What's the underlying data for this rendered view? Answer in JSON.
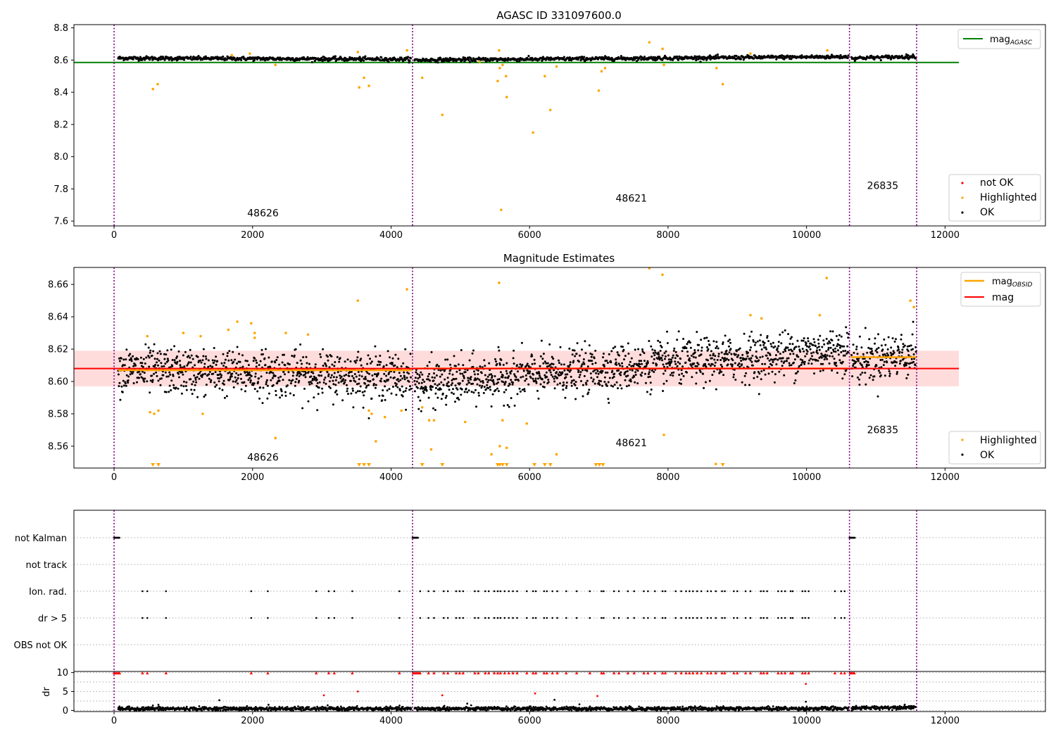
{
  "figure": {
    "title": "AGASC ID 331097600.0",
    "colors": {
      "ok": "#000000",
      "highlighted": "#ffa500",
      "not_ok": "#ff0000",
      "agasc_line": "#008000",
      "obsid_mag": "#ffa500",
      "mag": "#ff0000",
      "band": "#ffc0c0",
      "obs_boundary": "#800080"
    }
  },
  "chart_data": [
    {
      "id": "agasc",
      "type": "scatter",
      "title": "AGASC ID 331097600.0",
      "xlim": [
        -580,
        13450
      ],
      "ylim": [
        7.57,
        8.82
      ],
      "x_ticks": [
        "0",
        "2000",
        "4000",
        "6000",
        "8000",
        "10000",
        "12000"
      ],
      "y_ticks": [
        "7.6",
        "7.8",
        "8.0",
        "8.2",
        "8.4",
        "8.6",
        "8.8"
      ],
      "obs_boundaries": [
        0,
        4310,
        10620,
        11590
      ],
      "obs_labels": [
        {
          "text": "48626",
          "x": 2150,
          "y": 7.63
        },
        {
          "text": "48621",
          "x": 7470,
          "y": 7.72
        },
        {
          "text": "26835",
          "x": 11100,
          "y": 7.8
        }
      ],
      "mag_agasc": 8.585,
      "series": [
        {
          "name": "not OK",
          "color": "#ff0000",
          "points": []
        },
        {
          "name": "Highlighted",
          "color": "#ffa500",
          "points": [
            [
              560,
              8.42
            ],
            [
              630,
              8.45
            ],
            [
              1700,
              8.63
            ],
            [
              1960,
              8.64
            ],
            [
              2330,
              8.57
            ],
            [
              3520,
              8.65
            ],
            [
              3540,
              8.43
            ],
            [
              3610,
              8.49
            ],
            [
              3680,
              8.44
            ],
            [
              4230,
              8.66
            ],
            [
              4450,
              8.49
            ],
            [
              4740,
              8.26
            ],
            [
              5280,
              8.59
            ],
            [
              5540,
              8.47
            ],
            [
              5560,
              8.66
            ],
            [
              5570,
              8.55
            ],
            [
              5610,
              8.57
            ],
            [
              5660,
              8.5
            ],
            [
              5670,
              8.37
            ],
            [
              6050,
              8.15
            ],
            [
              6220,
              8.5
            ],
            [
              6300,
              8.29
            ],
            [
              6390,
              8.56
            ],
            [
              7000,
              8.41
            ],
            [
              7040,
              8.53
            ],
            [
              7090,
              8.55
            ],
            [
              7730,
              8.71
            ],
            [
              7920,
              8.67
            ],
            [
              7940,
              8.57
            ],
            [
              8700,
              8.55
            ],
            [
              8790,
              8.45
            ],
            [
              9190,
              8.64
            ],
            [
              10300,
              8.66
            ],
            [
              5590,
              7.67
            ]
          ]
        },
        {
          "name": "OK",
          "color": "#000000",
          "segments": [
            [
              60,
              4290,
              8.612,
              8.605
            ],
            [
              4340,
              10610,
              8.6,
              8.621
            ],
            [
              10650,
              11580,
              8.612,
              8.622
            ]
          ],
          "spread": 0.006
        }
      ],
      "legend": [
        {
          "label": "mag_AGASC",
          "position": "upper right"
        },
        {
          "labels": [
            "not OK",
            "Highlighted",
            "OK"
          ],
          "position": "lower right"
        }
      ]
    },
    {
      "id": "estimates",
      "type": "scatter",
      "title": "Magnitude Estimates",
      "xlim": [
        -580,
        13450
      ],
      "ylim": [
        8.5465,
        8.6705
      ],
      "x_ticks": [
        "0",
        "2000",
        "4000",
        "6000",
        "8000",
        "10000",
        "12000"
      ],
      "y_ticks": [
        "8.56",
        "8.58",
        "8.60",
        "8.62",
        "8.64",
        "8.66"
      ],
      "obs_boundaries": [
        0,
        4310,
        10620,
        11590
      ],
      "obs_labels": [
        {
          "text": "48626",
          "x": 2150,
          "y": 8.551
        },
        {
          "text": "48621",
          "x": 7470,
          "y": 8.56
        },
        {
          "text": "26835",
          "x": 11100,
          "y": 8.568
        }
      ],
      "mag": 8.608,
      "mag_band": [
        8.597,
        8.619
      ],
      "mag_obsid": [
        {
          "x": [
            60,
            4300
          ],
          "y": 8.607
        },
        {
          "x": [
            4320,
            10610
          ],
          "y": 8.608
        },
        {
          "x": [
            10640,
            11590
          ],
          "y": 8.615
        }
      ],
      "series": [
        {
          "name": "Highlighted",
          "color": "#ffa500",
          "points": [
            [
              480,
              8.628
            ],
            [
              520,
              8.581
            ],
            [
              580,
              8.58
            ],
            [
              640,
              8.582
            ],
            [
              1000,
              8.63
            ],
            [
              1250,
              8.628
            ],
            [
              1280,
              8.58
            ],
            [
              1650,
              8.632
            ],
            [
              1780,
              8.637
            ],
            [
              1980,
              8.636
            ],
            [
              2030,
              8.63
            ],
            [
              2030,
              8.627
            ],
            [
              2330,
              8.565
            ],
            [
              2480,
              8.63
            ],
            [
              2800,
              8.629
            ],
            [
              3520,
              8.65
            ],
            [
              3680,
              8.582
            ],
            [
              3720,
              8.58
            ],
            [
              3780,
              8.563
            ],
            [
              3910,
              8.578
            ],
            [
              4150,
              8.582
            ],
            [
              4230,
              8.657
            ],
            [
              4450,
              8.584
            ],
            [
              4550,
              8.576
            ],
            [
              4580,
              8.558
            ],
            [
              4620,
              8.576
            ],
            [
              5070,
              8.575
            ],
            [
              5450,
              8.555
            ],
            [
              5560,
              8.661
            ],
            [
              5570,
              8.56
            ],
            [
              5610,
              8.576
            ],
            [
              5670,
              8.559
            ],
            [
              5960,
              8.574
            ],
            [
              6390,
              8.555
            ],
            [
              7730,
              8.67
            ],
            [
              7920,
              8.666
            ],
            [
              7940,
              8.567
            ],
            [
              8690,
              8.549
            ],
            [
              9190,
              8.641
            ],
            [
              9350,
              8.639
            ],
            [
              10190,
              8.641
            ],
            [
              10290,
              8.664
            ],
            [
              11500,
              8.65
            ],
            [
              11550,
              8.646
            ]
          ]
        },
        {
          "name": "below-range",
          "color": "#ffa500",
          "marker": "triangle-down",
          "x": [
            560,
            640,
            3540,
            3610,
            3680,
            4450,
            4740,
            5540,
            5570,
            5610,
            5670,
            6070,
            6220,
            6300,
            6960,
            7010,
            7060,
            8790
          ]
        },
        {
          "name": "OK",
          "color": "#000000",
          "segments": [
            [
              60,
              4290,
              8.607,
              8.603
            ],
            [
              4340,
              10610,
              8.598,
              8.62
            ],
            [
              10650,
              11580,
              8.612,
              8.618
            ]
          ],
          "spread": 0.007
        }
      ],
      "legend": [
        {
          "labels": [
            "mag_OBSID",
            "mag"
          ],
          "position": "upper right"
        },
        {
          "labels": [
            "Highlighted",
            "OK"
          ],
          "position": "lower right"
        }
      ]
    },
    {
      "id": "flags",
      "type": "scatter",
      "xlim": [
        -580,
        13450
      ],
      "rows": [
        "not Kalman",
        "not track",
        "Ion. rad.",
        "dr > 5",
        "OBS not OK"
      ],
      "obs_boundaries": [
        0,
        4310,
        10620,
        11590
      ],
      "not_kalman_spans": [
        [
          0,
          80
        ],
        [
          4310,
          4390
        ],
        [
          10620,
          10700
        ]
      ],
      "ion_rad_x": [
        410,
        480,
        750,
        1980,
        2220,
        2920,
        3100,
        3180,
        3440,
        4120,
        4420,
        4540,
        4620,
        4760,
        4820,
        4940,
        4990,
        5040,
        5210,
        5260,
        5360,
        5410,
        5490,
        5540,
        5580,
        5640,
        5700,
        5760,
        5820,
        5960,
        6050,
        6090,
        6210,
        6250,
        6330,
        6400,
        6530,
        6680,
        6870,
        7040,
        7070,
        7220,
        7290,
        7420,
        7510,
        7650,
        7710,
        7810,
        7920,
        7960,
        8110,
        8190,
        8260,
        8310,
        8360,
        8420,
        8480,
        8570,
        8620,
        8690,
        8780,
        8820,
        8950,
        9000,
        9120,
        9190,
        9340,
        9380,
        9430,
        9590,
        9640,
        9690,
        9770,
        9800,
        9940,
        9980,
        10030,
        10410,
        10500,
        10550
      ],
      "dr_gt5_x": [
        410,
        480,
        750,
        1980,
        2220,
        2920,
        3100,
        3180,
        3440,
        4120,
        4420,
        4540,
        4620,
        4760,
        4820,
        4940,
        4990,
        5040,
        5210,
        5260,
        5360,
        5410,
        5490,
        5540,
        5580,
        5640,
        5700,
        5760,
        5820,
        5960,
        6050,
        6090,
        6210,
        6250,
        6330,
        6400,
        6530,
        6680,
        6870,
        7040,
        7070,
        7220,
        7290,
        7420,
        7510,
        7650,
        7710,
        7810,
        7920,
        7960,
        8110,
        8190,
        8260,
        8310,
        8360,
        8420,
        8480,
        8570,
        8620,
        8690,
        8780,
        8820,
        8950,
        9000,
        9120,
        9190,
        9340,
        9380,
        9430,
        9590,
        9640,
        9690,
        9770,
        9800,
        9940,
        9980,
        10030,
        10410,
        10500,
        10550
      ]
    },
    {
      "id": "dr",
      "type": "scatter",
      "ylabel": "dr",
      "xlim": [
        -580,
        13450
      ],
      "ylim": [
        -0.3,
        10.3
      ],
      "x_ticks": [
        "0",
        "2000",
        "4000",
        "6000",
        "8000",
        "10000",
        "12000"
      ],
      "y_ticks": [
        "0",
        "5",
        "10"
      ],
      "obs_boundaries": [
        0,
        4310,
        10620,
        11590
      ],
      "clipped_x": [
        0,
        20,
        40,
        60,
        80,
        410,
        480,
        750,
        1980,
        2220,
        2920,
        3100,
        3180,
        3440,
        4120,
        4320,
        4340,
        4360,
        4380,
        4400,
        4420,
        4540,
        4620,
        4760,
        4820,
        4940,
        4990,
        5040,
        5210,
        5260,
        5360,
        5410,
        5490,
        5540,
        5580,
        5640,
        5700,
        5760,
        5820,
        5960,
        6050,
        6090,
        6210,
        6250,
        6330,
        6400,
        6530,
        6680,
        6870,
        7040,
        7070,
        7220,
        7290,
        7420,
        7510,
        7650,
        7710,
        7810,
        7920,
        7960,
        8110,
        8190,
        8260,
        8310,
        8360,
        8420,
        8480,
        8570,
        8620,
        8690,
        8780,
        8820,
        8950,
        9000,
        9120,
        9190,
        9340,
        9380,
        9430,
        9590,
        9640,
        9690,
        9770,
        9800,
        9940,
        9980,
        10030,
        10410,
        10500,
        10550,
        10630,
        10650,
        10670,
        10690
      ],
      "not_ok_points": [
        [
          3030,
          4.0
        ],
        [
          3520,
          5.0
        ],
        [
          4740,
          4.0
        ],
        [
          6080,
          4.5
        ],
        [
          6980,
          3.8
        ],
        [
          9990,
          7.0
        ]
      ],
      "ok_points": [
        [
          560,
          1.3
        ],
        [
          640,
          1.5
        ],
        [
          1520,
          2.7
        ],
        [
          2230,
          1.5
        ],
        [
          4770,
          1.2
        ],
        [
          5100,
          1.8
        ],
        [
          6360,
          2.8
        ],
        [
          6720,
          1.6
        ],
        [
          9990,
          2.3
        ]
      ],
      "ok_segments": [
        [
          60,
          4290,
          0.45,
          0.45
        ],
        [
          4340,
          10610,
          0.45,
          0.5
        ],
        [
          10650,
          11580,
          0.6,
          0.9
        ]
      ],
      "spread": 0.25
    }
  ]
}
